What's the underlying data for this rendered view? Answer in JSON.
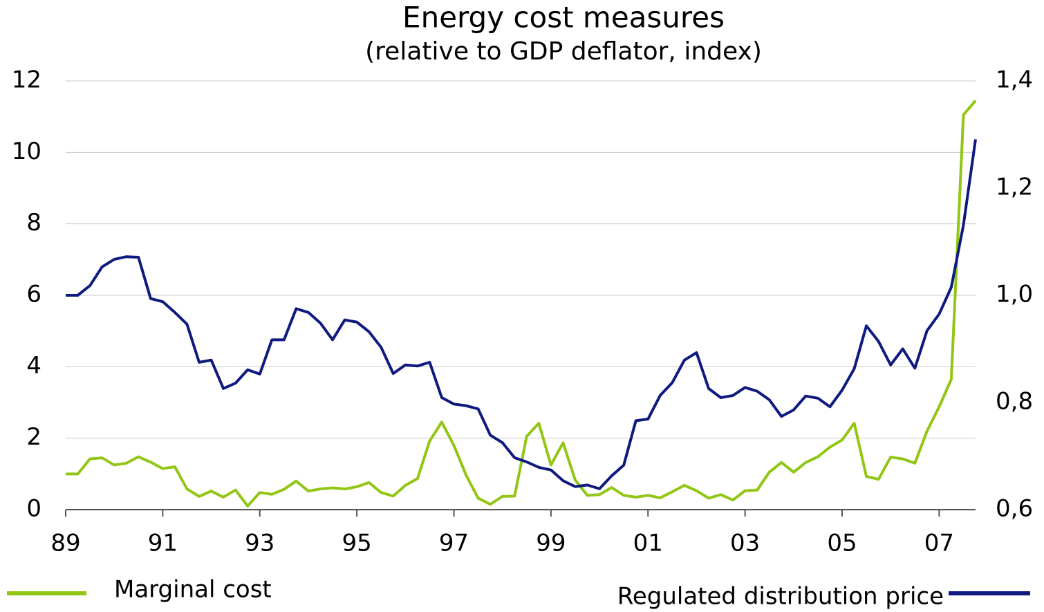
{
  "chart_data": {
    "type": "line",
    "title": "Energy cost measures",
    "subtitle": "(relative to GDP deflator, index)",
    "x": [
      1989,
      1989.25,
      1989.5,
      1989.75,
      1990,
      1990.25,
      1990.5,
      1990.75,
      1991,
      1991.25,
      1991.5,
      1991.75,
      1992,
      1992.25,
      1992.5,
      1992.75,
      1993,
      1993.25,
      1993.5,
      1993.75,
      1994,
      1994.25,
      1994.5,
      1994.75,
      1995,
      1995.25,
      1995.5,
      1995.75,
      1996,
      1996.25,
      1996.5,
      1996.75,
      1997,
      1997.25,
      1997.5,
      1997.75,
      1998,
      1998.25,
      1998.5,
      1998.75,
      1999,
      1999.25,
      1999.5,
      1999.75,
      2000,
      2000.25,
      2000.5,
      2000.75,
      2001,
      2001.25,
      2001.5,
      2001.75,
      2002,
      2002.25,
      2002.5,
      2002.75,
      2003,
      2003.25,
      2003.5,
      2003.75,
      2004,
      2004.25,
      2004.5,
      2004.75,
      2005,
      2005.25,
      2005.5,
      2005.75,
      2006,
      2006.25,
      2006.5,
      2006.75,
      2007,
      2007.25,
      2007.5,
      2007.75
    ],
    "series": [
      {
        "name": "Marginal cost",
        "color": "#92c614",
        "axis": "y",
        "values": [
          1.0,
          1.0,
          1.42,
          1.45,
          1.25,
          1.3,
          1.48,
          1.33,
          1.15,
          1.2,
          0.58,
          0.37,
          0.52,
          0.35,
          0.55,
          0.1,
          0.48,
          0.43,
          0.57,
          0.8,
          0.52,
          0.58,
          0.61,
          0.58,
          0.64,
          0.76,
          0.48,
          0.38,
          0.68,
          0.87,
          1.92,
          2.45,
          1.8,
          0.97,
          0.32,
          0.15,
          0.37,
          0.38,
          2.05,
          2.42,
          1.25,
          1.87,
          0.83,
          0.4,
          0.42,
          0.62,
          0.4,
          0.35,
          0.4,
          0.33,
          0.5,
          0.68,
          0.53,
          0.32,
          0.42,
          0.27,
          0.53,
          0.55,
          1.05,
          1.32,
          1.05,
          1.32,
          1.48,
          1.75,
          1.95,
          2.42,
          0.93,
          0.85,
          1.47,
          1.42,
          1.3,
          2.2,
          2.88,
          3.65,
          11.05,
          11.45
        ]
      },
      {
        "name": "Regulated distribution price",
        "color": "#0f1a80",
        "axis": "y2",
        "values": [
          1.0,
          1.0,
          1.018,
          1.053,
          1.067,
          1.072,
          1.071,
          0.994,
          0.988,
          0.968,
          0.946,
          0.875,
          0.879,
          0.826,
          0.836,
          0.861,
          0.853,
          0.917,
          0.917,
          0.975,
          0.968,
          0.948,
          0.917,
          0.954,
          0.95,
          0.932,
          0.903,
          0.854,
          0.87,
          0.868,
          0.875,
          0.809,
          0.797,
          0.794,
          0.788,
          0.739,
          0.725,
          0.697,
          0.689,
          0.679,
          0.674,
          0.654,
          0.643,
          0.646,
          0.639,
          0.663,
          0.683,
          0.766,
          0.769,
          0.813,
          0.837,
          0.879,
          0.893,
          0.826,
          0.809,
          0.813,
          0.828,
          0.821,
          0.805,
          0.774,
          0.786,
          0.812,
          0.808,
          0.792,
          0.823,
          0.863,
          0.943,
          0.914,
          0.87,
          0.9,
          0.864,
          0.934,
          0.965,
          1.015,
          1.131,
          1.291
        ]
      }
    ],
    "xlim": [
      1989,
      2007.75
    ],
    "xticks": [
      {
        "value": 1989,
        "label": "89"
      },
      {
        "value": 1991,
        "label": "91"
      },
      {
        "value": 1993,
        "label": "93"
      },
      {
        "value": 1995,
        "label": "95"
      },
      {
        "value": 1997,
        "label": "97"
      },
      {
        "value": 1999,
        "label": "99"
      },
      {
        "value": 2001,
        "label": "01"
      },
      {
        "value": 2003,
        "label": "03"
      },
      {
        "value": 2005,
        "label": "05"
      },
      {
        "value": 2007,
        "label": "07"
      }
    ],
    "ylim": [
      0,
      12
    ],
    "yticks": [
      0,
      2,
      4,
      6,
      8,
      10,
      12
    ],
    "y2lim": [
      0.6,
      1.4
    ],
    "y2ticks": [
      {
        "value": 0.6,
        "label": "0,6"
      },
      {
        "value": 0.8,
        "label": "0,8"
      },
      {
        "value": 1.0,
        "label": "1,0"
      },
      {
        "value": 1.2,
        "label": "1,2"
      },
      {
        "value": 1.4,
        "label": "1,4"
      }
    ],
    "grid": true,
    "legend": "bottom"
  }
}
